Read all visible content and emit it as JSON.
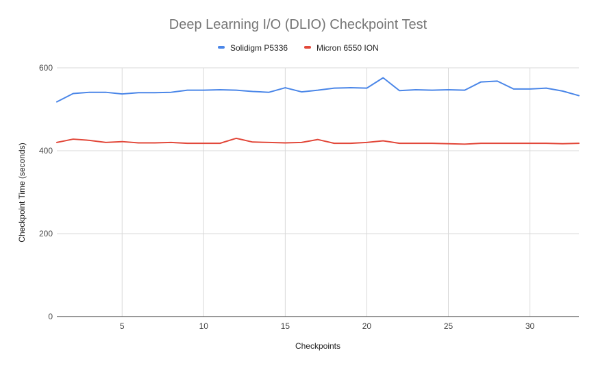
{
  "chart_data": {
    "type": "line",
    "title": "Deep Learning I/O (DLIO) Checkpoint Test",
    "xlabel": "Checkpoints",
    "ylabel": "Checkpoint Time (seconds)",
    "xlim": [
      1,
      33
    ],
    "ylim": [
      0,
      600
    ],
    "x_ticks": [
      5,
      10,
      15,
      20,
      25,
      30
    ],
    "y_ticks": [
      0,
      200,
      400,
      600
    ],
    "grid": true,
    "legend_position": "top",
    "x": [
      1,
      2,
      3,
      4,
      5,
      6,
      7,
      8,
      9,
      10,
      11,
      12,
      13,
      14,
      15,
      16,
      17,
      18,
      19,
      20,
      21,
      22,
      23,
      24,
      25,
      26,
      27,
      28,
      29,
      30,
      31,
      32,
      33
    ],
    "series": [
      {
        "name": "Solidigm P5336",
        "color": "#4a86e8",
        "values": [
          518,
          538,
          541,
          541,
          537,
          540,
          540,
          541,
          546,
          546,
          547,
          546,
          543,
          541,
          552,
          542,
          546,
          551,
          552,
          551,
          576,
          545,
          547,
          546,
          547,
          546,
          566,
          568,
          549,
          549,
          551,
          544,
          533
        ]
      },
      {
        "name": "Micron 6550 ION",
        "color": "#e2483a",
        "values": [
          420,
          428,
          425,
          420,
          422,
          419,
          419,
          420,
          418,
          418,
          418,
          430,
          421,
          420,
          419,
          420,
          427,
          418,
          418,
          420,
          424,
          418,
          418,
          418,
          417,
          416,
          418,
          418,
          418,
          418,
          418,
          417,
          418
        ]
      }
    ]
  }
}
